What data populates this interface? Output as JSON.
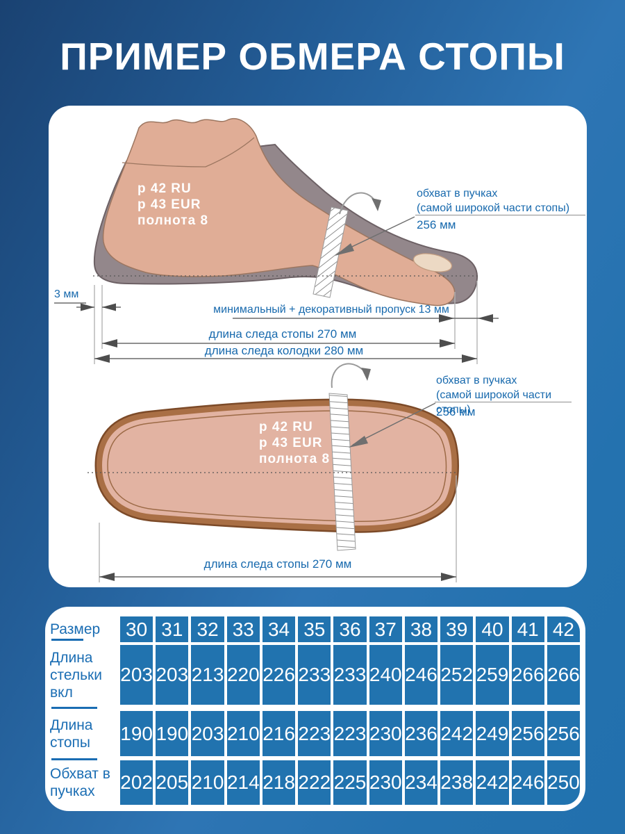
{
  "title": "ПРИМЕР ОБМЕРА СТОПЫ",
  "colors": {
    "background_blue": "#2673b1",
    "accent_text_blue": "#1769ad",
    "table_cell_blue": "#2173af",
    "skin": "#e0ad96",
    "last_grey": "#93878b",
    "sole_brown": "#a96f45"
  },
  "side_view": {
    "size_line1": "р 42 RU",
    "size_line2": "р 43 EUR",
    "size_line3": "полнота 8",
    "girth_line1": "обхват в пучках",
    "girth_line2": "(самой широкой части стопы)",
    "girth_value": "256 мм",
    "heel_offset": "3 мм",
    "allowance": "минимальный + декоративный пропуск 13 мм",
    "foot_length": "длина следа стопы 270 мм",
    "last_length": "длина следа колодки 280 мм"
  },
  "sole_view": {
    "size_line1": "р 42 RU",
    "size_line2": "р 43 EUR",
    "size_line3": "полнота 8",
    "girth_line1": "обхват в пучках",
    "girth_line2": "(самой широкой части стопы)",
    "girth_value": "256 мм",
    "foot_length": "длина следа стопы 270 мм"
  },
  "table": {
    "rows": [
      {
        "label": "Размер",
        "values": [
          "30",
          "31",
          "32",
          "33",
          "34",
          "35",
          "36",
          "37",
          "38",
          "39",
          "40",
          "41",
          "42"
        ]
      },
      {
        "label": "Длина стельки вкл",
        "values": [
          "203",
          "203",
          "213",
          "220",
          "226",
          "233",
          "233",
          "240",
          "246",
          "252",
          "259",
          "266",
          "266"
        ]
      },
      {
        "label": "Длина стопы",
        "values": [
          "190",
          "190",
          "203",
          "210",
          "216",
          "223",
          "223",
          "230",
          "236",
          "242",
          "249",
          "256",
          "256"
        ]
      },
      {
        "label": "Обхват в пучках",
        "values": [
          "202",
          "205",
          "210",
          "214",
          "218",
          "222",
          "225",
          "230",
          "234",
          "238",
          "242",
          "246",
          "250"
        ]
      }
    ]
  }
}
